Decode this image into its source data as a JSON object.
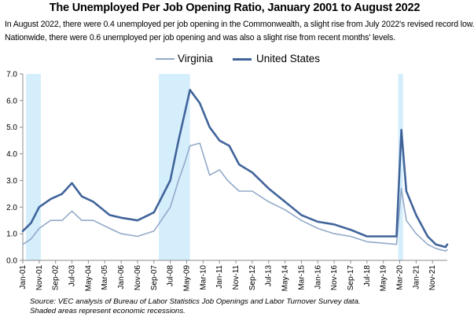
{
  "header": {
    "title": "The Unemployed Per Job Opening Ratio, January 2001 to August 2022",
    "subtitle_line1": "In August 2022, there were 0.4 unemployed per job opening in the Commonwealth, a slight rise from July 2022's revised record low.",
    "subtitle_line2": "Nationwide, there were  0.6 unemployed per job opening and was also a slight rise from recent months' levels."
  },
  "legend": {
    "items": [
      {
        "label": "Virginia",
        "color": "#93a9c9"
      },
      {
        "label": "United States",
        "color": "#40649a"
      }
    ]
  },
  "footer": {
    "source": "Source: VEC analysis of Bureau of Labor Statistics Job Openings and Labor Turnover Survey data.",
    "note": "Shaded areas represent economic recessions."
  },
  "chart_data": {
    "type": "line",
    "x_start": "Jan-01",
    "x_end": "Aug-22",
    "ylim": [
      0,
      7
    ],
    "y_ticks": [
      "0.0",
      "1.0",
      "2.0",
      "3.0",
      "4.0",
      "5.0",
      "6.0",
      "7.0"
    ],
    "x_tick_labels": [
      "Jan-01",
      "Nov-01",
      "Sep-02",
      "Jul-03",
      "May-04",
      "Mar-05",
      "Jan-06",
      "Nov-06",
      "Sep-07",
      "Jul-08",
      "May-09",
      "Mar-10",
      "Jan-11",
      "Nov-11",
      "Sep-12",
      "Jul-13",
      "May-14",
      "Mar-15",
      "Jan-16",
      "Nov-16",
      "Sep-17",
      "Jul-18",
      "May-19",
      "Mar-20",
      "Jan-21",
      "Nov-21"
    ],
    "grid": false,
    "legend_position": "top",
    "recessions": [
      {
        "start": "Mar-01",
        "end": "Nov-01"
      },
      {
        "start": "Dec-07",
        "end": "Jun-09"
      },
      {
        "start": "Feb-20",
        "end": "Apr-20"
      }
    ],
    "series": [
      {
        "name": "Virginia",
        "color": "#93a9c9",
        "points": [
          [
            "Jan-01",
            0.6
          ],
          [
            "Jun-01",
            0.8
          ],
          [
            "Nov-01",
            1.2
          ],
          [
            "Jun-02",
            1.5
          ],
          [
            "Jan-03",
            1.5
          ],
          [
            "Jul-03",
            1.85
          ],
          [
            "Jan-04",
            1.5
          ],
          [
            "Aug-04",
            1.5
          ],
          [
            "Jun-05",
            1.2
          ],
          [
            "Jan-06",
            1.0
          ],
          [
            "Nov-06",
            0.9
          ],
          [
            "Sep-07",
            1.1
          ],
          [
            "Jul-08",
            2.0
          ],
          [
            "Dec-08",
            3.0
          ],
          [
            "Apr-09",
            3.7
          ],
          [
            "Jul-09",
            4.3
          ],
          [
            "Jan-10",
            4.4
          ],
          [
            "Jul-10",
            3.2
          ],
          [
            "Jan-11",
            3.4
          ],
          [
            "Jun-11",
            3.0
          ],
          [
            "Jan-12",
            2.6
          ],
          [
            "Sep-12",
            2.6
          ],
          [
            "Jul-13",
            2.2
          ],
          [
            "May-14",
            1.9
          ],
          [
            "Mar-15",
            1.5
          ],
          [
            "Jan-16",
            1.2
          ],
          [
            "Nov-16",
            1.0
          ],
          [
            "Sep-17",
            0.9
          ],
          [
            "Jul-18",
            0.7
          ],
          [
            "Jan-20",
            0.6
          ],
          [
            "Apr-20",
            2.7
          ],
          [
            "Jul-20",
            1.5
          ],
          [
            "Jan-21",
            1.0
          ],
          [
            "Aug-21",
            0.6
          ],
          [
            "Jan-22",
            0.45
          ],
          [
            "Jul-22",
            0.35
          ],
          [
            "Aug-22",
            0.4
          ]
        ]
      },
      {
        "name": "United States",
        "color": "#40649a",
        "points": [
          [
            "Jan-01",
            1.1
          ],
          [
            "Jun-01",
            1.4
          ],
          [
            "Nov-01",
            2.0
          ],
          [
            "Jun-02",
            2.3
          ],
          [
            "Jan-03",
            2.5
          ],
          [
            "Jul-03",
            2.9
          ],
          [
            "Jan-04",
            2.4
          ],
          [
            "Aug-04",
            2.2
          ],
          [
            "Jun-05",
            1.7
          ],
          [
            "Jan-06",
            1.6
          ],
          [
            "Nov-06",
            1.5
          ],
          [
            "Sep-07",
            1.8
          ],
          [
            "Jul-08",
            3.0
          ],
          [
            "Dec-08",
            4.5
          ],
          [
            "Jul-09",
            6.4
          ],
          [
            "Jan-10",
            5.9
          ],
          [
            "Jul-10",
            5.0
          ],
          [
            "Jan-11",
            4.5
          ],
          [
            "Jul-11",
            4.3
          ],
          [
            "Jan-12",
            3.6
          ],
          [
            "Sep-12",
            3.3
          ],
          [
            "Jul-13",
            2.7
          ],
          [
            "May-14",
            2.2
          ],
          [
            "Mar-15",
            1.7
          ],
          [
            "Jan-16",
            1.45
          ],
          [
            "Nov-16",
            1.35
          ],
          [
            "Sep-17",
            1.15
          ],
          [
            "Jul-18",
            0.9
          ],
          [
            "Jan-20",
            0.9
          ],
          [
            "Apr-20",
            4.9
          ],
          [
            "Jul-20",
            2.6
          ],
          [
            "Jan-21",
            1.7
          ],
          [
            "Aug-21",
            0.9
          ],
          [
            "Jan-22",
            0.6
          ],
          [
            "Jul-22",
            0.5
          ],
          [
            "Aug-22",
            0.6
          ]
        ]
      }
    ]
  }
}
